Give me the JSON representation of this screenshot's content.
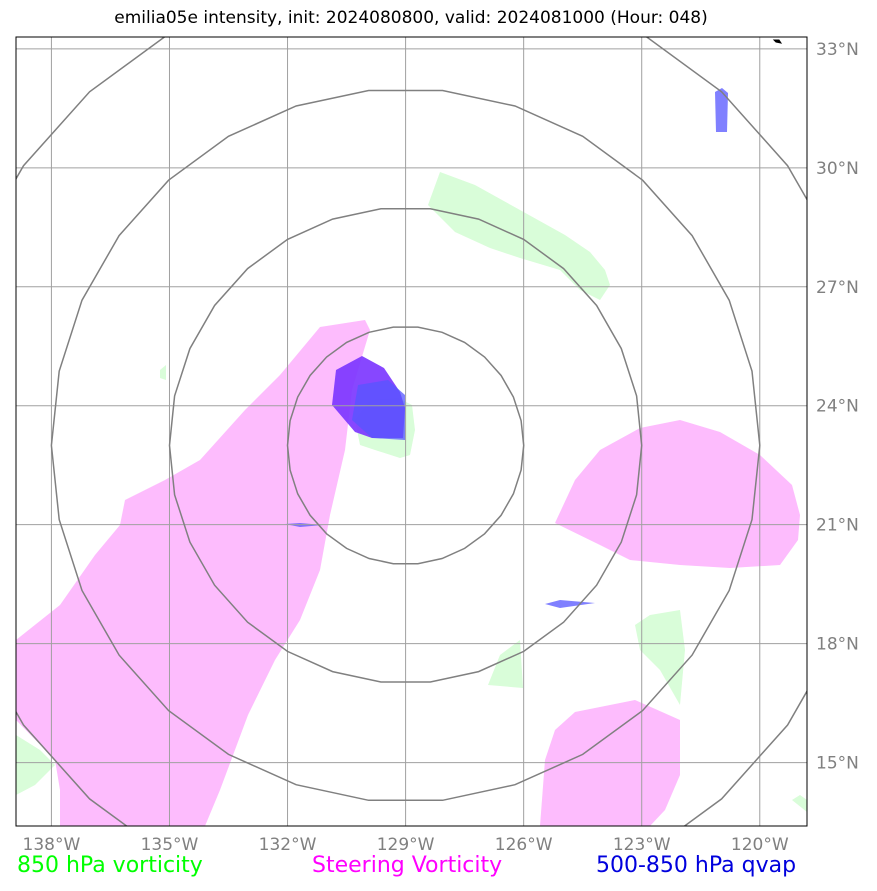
{
  "title": "emilia05e intensity, init: 2024080800, valid: 2024081000 (Hour: 048)",
  "map": {
    "lon_range": [
      -138.9,
      -118.8
    ],
    "lat_range": [
      13.4,
      33.3
    ],
    "lon_ticks": [
      {
        "value": -138,
        "label": "138°W"
      },
      {
        "value": -135,
        "label": "135°W"
      },
      {
        "value": -132,
        "label": "132°W"
      },
      {
        "value": -129,
        "label": "129°W"
      },
      {
        "value": -126,
        "label": "126°W"
      },
      {
        "value": -123,
        "label": "123°W"
      },
      {
        "value": -120,
        "label": "120°W"
      }
    ],
    "lat_ticks": [
      {
        "value": 15,
        "label": "15°N"
      },
      {
        "value": 18,
        "label": "18°N"
      },
      {
        "value": 21,
        "label": "21°N"
      },
      {
        "value": 24,
        "label": "24°N"
      },
      {
        "value": 27,
        "label": "27°N"
      },
      {
        "value": 30,
        "label": "30°N"
      },
      {
        "value": 33,
        "label": "33°N"
      }
    ],
    "storm_center": {
      "lon": -129.0,
      "lat": 23.0
    },
    "range_ring_radii_deg": [
      3,
      6,
      9,
      12
    ],
    "colors": {
      "grid": "#a0a0a0",
      "ring": "#808080",
      "vorticity_850": "#d9fdd9",
      "steering_vorticity": "#fdbcfd",
      "qvap": "#5555ff",
      "qvap_dark": "#7a33ff"
    }
  },
  "legend": {
    "left": {
      "label": "850 hPa vorticity",
      "color": "#00ff00"
    },
    "middle": {
      "label": "Steering Vorticity",
      "color": "#ff00ff"
    },
    "right": {
      "label": "500-850 hPa qvap",
      "color": "#0000dd"
    }
  }
}
